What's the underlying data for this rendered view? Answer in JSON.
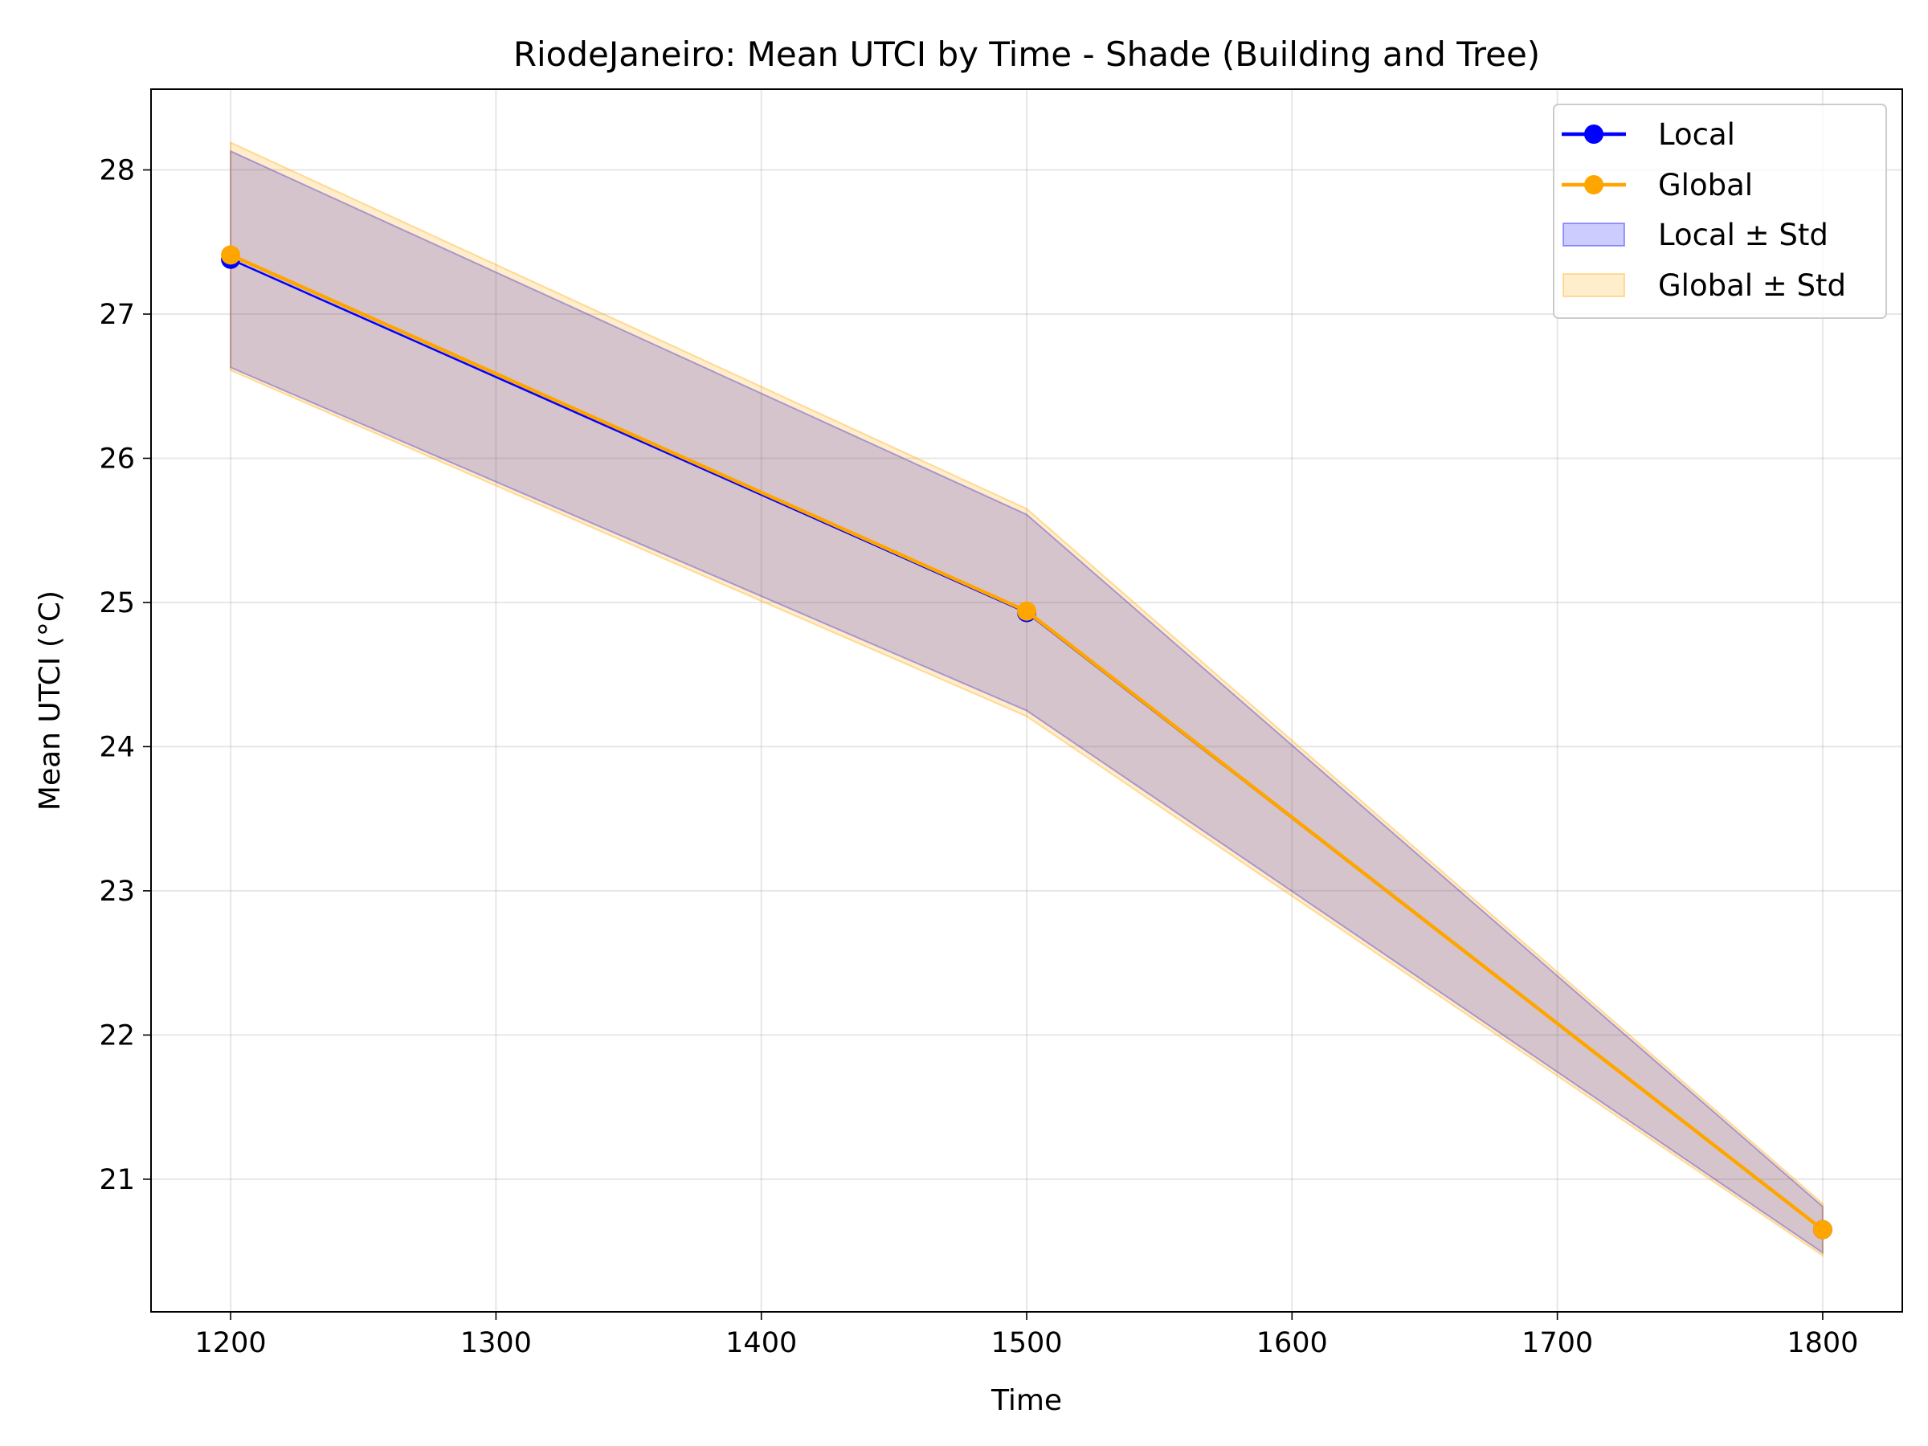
{
  "chart_data": {
    "type": "line",
    "title": "RiodeJaneiro: Mean UTCI by Time - Shade (Building and Tree)",
    "xlabel": "Time",
    "ylabel": "Mean UTCI (°C)",
    "x": [
      1200,
      1500,
      1800
    ],
    "xlim": [
      1170,
      1830
    ],
    "ylim": [
      20.08,
      28.56
    ],
    "xticks": [
      1200,
      1300,
      1400,
      1500,
      1600,
      1700,
      1800
    ],
    "yticks": [
      21,
      22,
      23,
      24,
      25,
      26,
      27,
      28
    ],
    "grid": true,
    "legend_position": "top-right",
    "series": [
      {
        "name": "Local",
        "color": "#0000ff",
        "values": [
          27.38,
          24.93,
          20.65
        ],
        "lower": [
          26.63,
          24.25,
          20.49
        ],
        "upper": [
          28.13,
          25.61,
          20.81
        ]
      },
      {
        "name": "Global",
        "color": "#ffa500",
        "values": [
          27.41,
          24.94,
          20.65
        ],
        "lower": [
          26.61,
          24.21,
          20.47
        ],
        "upper": [
          28.19,
          25.65,
          20.83
        ]
      }
    ],
    "bands": [
      {
        "name": "Local ± Std",
        "color": "#0000ff",
        "opacity": 0.2
      },
      {
        "name": "Global ± Std",
        "color": "#ffa500",
        "opacity": 0.2
      }
    ]
  }
}
